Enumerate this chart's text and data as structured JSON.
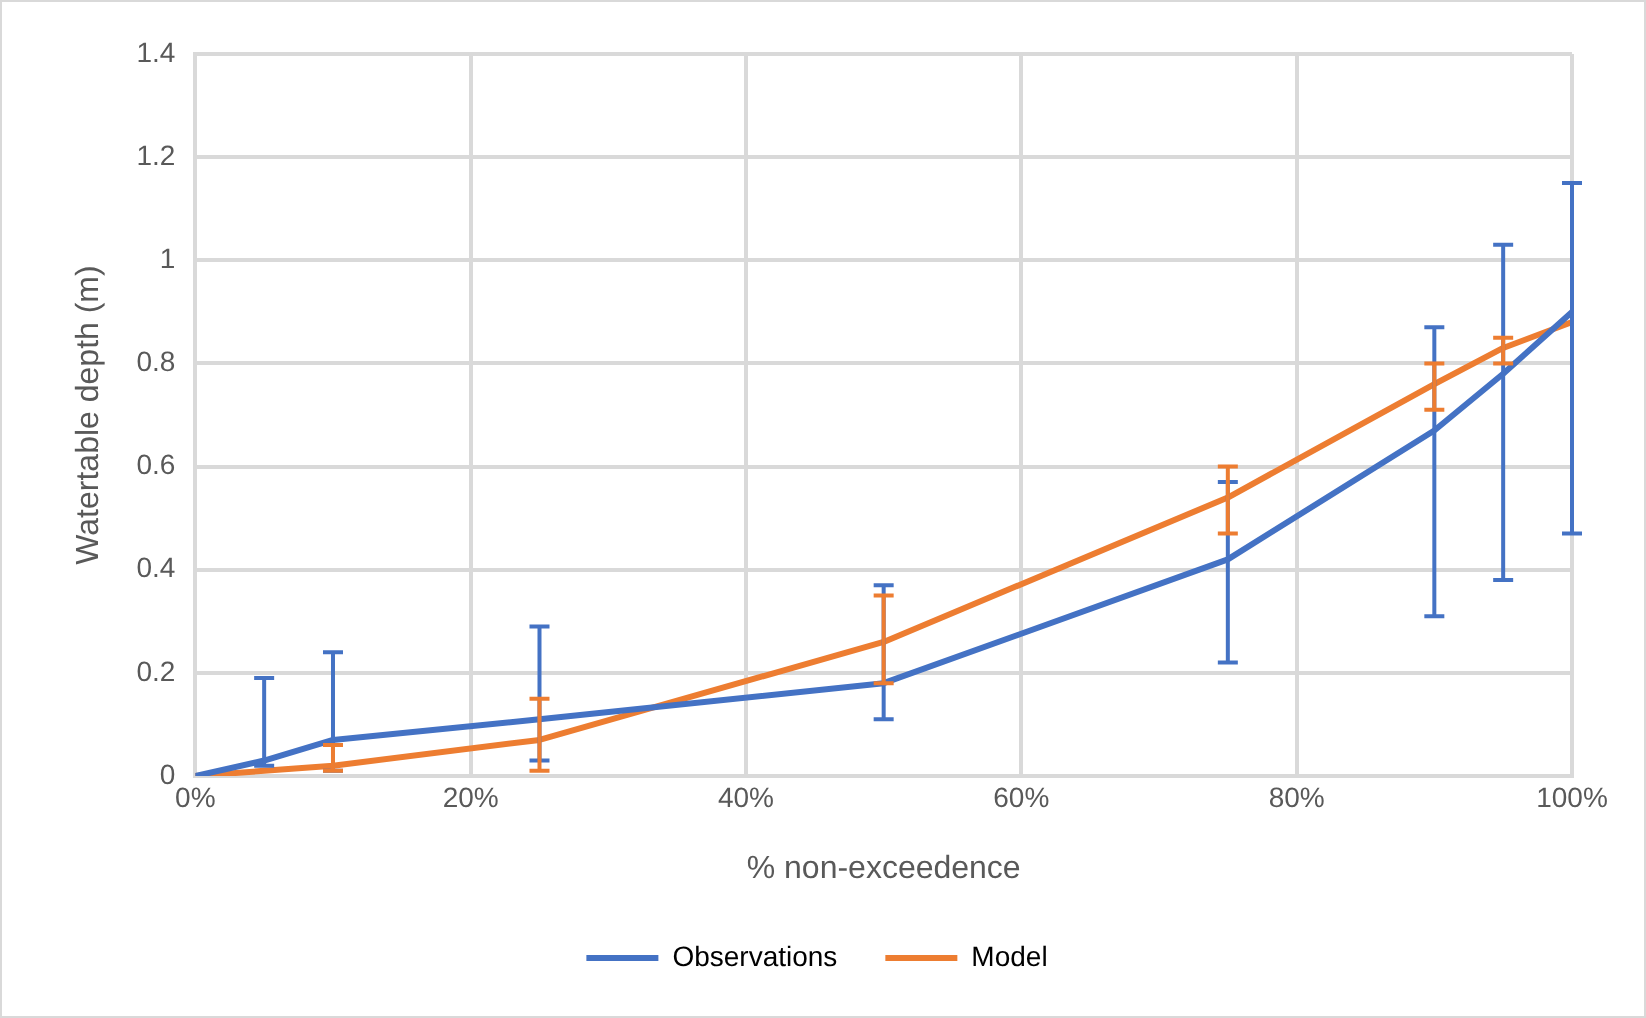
{
  "chart_data": {
    "type": "line",
    "xlabel": "% non-exceedence",
    "ylabel": "Watertable depth (m)",
    "x": [
      0,
      5,
      10,
      25,
      50,
      75,
      90,
      95,
      100
    ],
    "series": [
      {
        "name": "Observations",
        "color": "#4472c4",
        "values": [
          0,
          0.03,
          0.07,
          0.11,
          0.18,
          0.42,
          0.67,
          0.78,
          0.9
        ],
        "errors": [
          null,
          [
            0.02,
            0.19
          ],
          [
            0.01,
            0.24
          ],
          [
            0.03,
            0.29
          ],
          [
            0.11,
            0.37
          ],
          [
            0.22,
            0.57
          ],
          [
            0.31,
            0.87
          ],
          [
            0.38,
            1.03
          ],
          [
            0.47,
            1.15
          ]
        ]
      },
      {
        "name": "Model",
        "color": "#ed7d31",
        "values": [
          0,
          0.01,
          0.02,
          0.07,
          0.26,
          0.54,
          0.76,
          0.83,
          0.88
        ],
        "errors": [
          null,
          null,
          [
            0.01,
            0.06
          ],
          [
            0.01,
            0.15
          ],
          [
            0.18,
            0.35
          ],
          [
            0.47,
            0.6
          ],
          [
            0.71,
            0.8
          ],
          [
            0.8,
            0.85
          ],
          null
        ]
      }
    ],
    "xlim": [
      0,
      100
    ],
    "xticks": [
      {
        "value": 0,
        "label": "0%"
      },
      {
        "value": 20,
        "label": "20%"
      },
      {
        "value": 40,
        "label": "40%"
      },
      {
        "value": 60,
        "label": "60%"
      },
      {
        "value": 80,
        "label": "80%"
      },
      {
        "value": 100,
        "label": "100%"
      }
    ],
    "ylim": [
      0,
      1.4
    ],
    "yticks": [
      0,
      0.2,
      0.4,
      0.6,
      0.8,
      1,
      1.2,
      1.4
    ],
    "grid": true,
    "legend": "bottom",
    "marker": "none",
    "line_style": "solid"
  }
}
